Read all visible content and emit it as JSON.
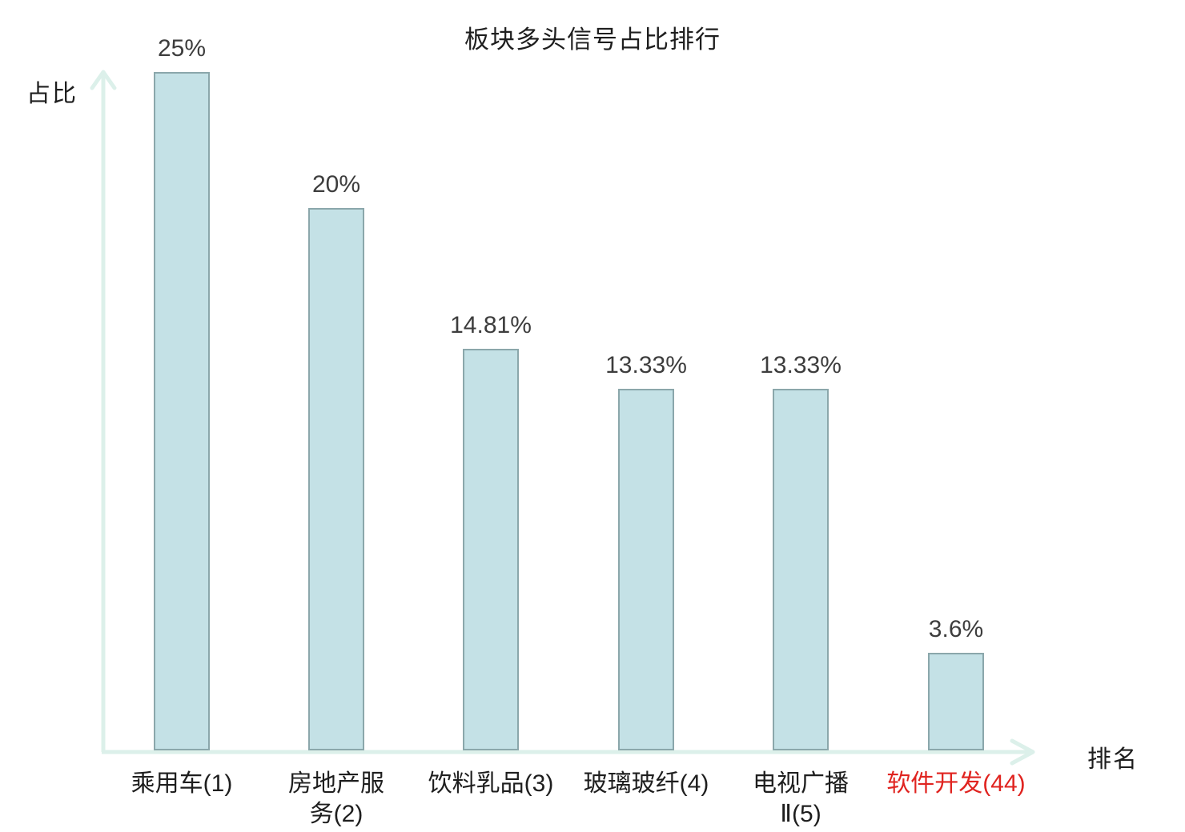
{
  "title": "板块多头信号占比排行",
  "axes": {
    "y_label": "占比",
    "x_label": "排名"
  },
  "colors": {
    "bar_fill": "#c4e1e6",
    "bar_border": "#8ba7ab",
    "axis_line": "#dcf0ea",
    "text": "#1e1e1e",
    "value_text": "#3d3d3d",
    "highlight_text": "#e02420"
  },
  "chart_data": {
    "type": "bar",
    "title": "板块多头信号占比排行",
    "xlabel": "排名",
    "ylabel": "占比",
    "ylim": [
      0,
      25
    ],
    "grid": false,
    "legend": "none",
    "categories": [
      "乘用车(1)",
      "房地产服务(2)",
      "饮料乳品(3)",
      "玻璃玻纤(4)",
      "电视广播Ⅱ(5)",
      "软件开发(44)"
    ],
    "values": [
      25,
      20,
      14.81,
      13.33,
      13.33,
      3.6
    ],
    "value_labels": [
      "25%",
      "20%",
      "14.81%",
      "13.33%",
      "13.33%",
      "3.6%"
    ],
    "category_lines": [
      [
        "乘用车(1)"
      ],
      [
        "房地产服",
        "务(2)"
      ],
      [
        "饮料乳品(3)"
      ],
      [
        "玻璃玻纤(4)"
      ],
      [
        "电视广播",
        "Ⅱ(5)"
      ],
      [
        "软件开发(44)"
      ]
    ],
    "highlight_index": 5
  }
}
